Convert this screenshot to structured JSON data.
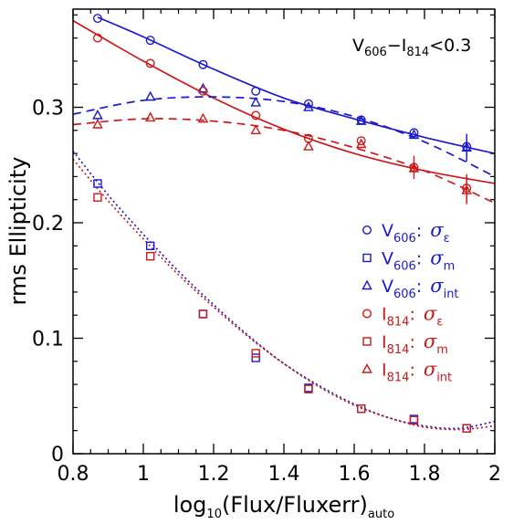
{
  "chart_data": {
    "type": "scatter",
    "xlabel": "log10(Flux/Fluxerr)auto",
    "xlabel_parts": {
      "pre": "log",
      "pre_sub": "10",
      "mid": "(Flux/Fluxerr)",
      "post_sub": "auto"
    },
    "ylabel": "rms Ellipticity",
    "xlim": [
      0.8,
      2.0
    ],
    "ylim": [
      0.0,
      0.385
    ],
    "xticks": [
      0.8,
      1.0,
      1.2,
      1.4,
      1.6,
      1.8,
      2.0
    ],
    "xtick_labels": [
      "0.8",
      "1",
      "1.2",
      "1.4",
      "1.6",
      "1.8",
      "2"
    ],
    "yticks": [
      0.0,
      0.1,
      0.2,
      0.3
    ],
    "ytick_labels": [
      "0",
      "0.1",
      "0.2",
      "0.3"
    ],
    "annotation": {
      "text": "V606−I814<0.3",
      "parts": {
        "a": "V",
        "a_sub": "606",
        "mid": "−I",
        "b_sub": "814",
        "rest": "<0.3"
      }
    },
    "legend_position": "right-middle",
    "colors": {
      "blue": "#1a1acc",
      "red": "#cc1a1a"
    },
    "series": [
      {
        "name": "V606: σε",
        "label_band": "V",
        "label_band_sub": "606",
        "label_sym": "σ",
        "label_sym_sub": "ε",
        "marker": "circle",
        "color": "#1a1acc",
        "x": [
          0.87,
          1.02,
          1.17,
          1.32,
          1.47,
          1.62,
          1.77,
          1.92
        ],
        "y": [
          0.377,
          0.358,
          0.337,
          0.314,
          0.303,
          0.289,
          0.278,
          0.266
        ]
      },
      {
        "name": "V606: σm",
        "label_band": "V",
        "label_band_sub": "606",
        "label_sym": "σ",
        "label_sym_sub": "m",
        "marker": "square",
        "color": "#1a1acc",
        "x": [
          0.87,
          1.02,
          1.17,
          1.32,
          1.47,
          1.62,
          1.77,
          1.92
        ],
        "y": [
          0.234,
          0.18,
          0.121,
          0.083,
          0.057,
          0.039,
          0.03,
          0.022
        ]
      },
      {
        "name": "V606: σint",
        "label_band": "V",
        "label_band_sub": "606",
        "label_sym": "σ",
        "label_sym_sub": "int",
        "marker": "triangle",
        "color": "#1a1acc",
        "x": [
          0.87,
          1.02,
          1.17,
          1.32,
          1.47,
          1.62,
          1.77,
          1.92
        ],
        "y": [
          0.293,
          0.309,
          0.316,
          0.304,
          0.3,
          0.288,
          0.276,
          0.265
        ]
      },
      {
        "name": "I814: σε",
        "label_band": "I",
        "label_band_sub": "814",
        "label_sym": "σ",
        "label_sym_sub": "ε",
        "marker": "circle",
        "color": "#cc1a1a",
        "x": [
          0.87,
          1.02,
          1.17,
          1.32,
          1.47,
          1.62,
          1.77,
          1.92
        ],
        "y": [
          0.36,
          0.338,
          0.314,
          0.293,
          0.273,
          0.271,
          0.248,
          0.23
        ]
      },
      {
        "name": "I814: σm",
        "label_band": "I",
        "label_band_sub": "814",
        "label_sym": "σ",
        "label_sym_sub": "m",
        "marker": "square",
        "color": "#cc1a1a",
        "x": [
          0.87,
          1.02,
          1.17,
          1.32,
          1.47,
          1.62,
          1.77,
          1.92
        ],
        "y": [
          0.222,
          0.171,
          0.121,
          0.087,
          0.056,
          0.039,
          0.029,
          0.022
        ]
      },
      {
        "name": "I814: σint",
        "label_band": "I",
        "label_band_sub": "814",
        "label_sym": "σ",
        "label_sym_sub": "int",
        "marker": "triangle",
        "color": "#cc1a1a",
        "x": [
          0.87,
          1.02,
          1.17,
          1.32,
          1.47,
          1.62,
          1.77,
          1.92
        ],
        "y": [
          0.285,
          0.291,
          0.29,
          0.28,
          0.266,
          0.268,
          0.247,
          0.228
        ]
      }
    ],
    "fit_curves": [
      {
        "of": "V606: σε",
        "style": "solid",
        "color": "#1a1acc",
        "x": [
          0.87,
          1.0,
          1.2,
          1.4,
          1.6,
          1.8,
          2.0
        ],
        "y": [
          0.378,
          0.361,
          0.333,
          0.308,
          0.29,
          0.274,
          0.26
        ]
      },
      {
        "of": "I814: σε",
        "style": "solid",
        "color": "#cc1a1a",
        "x": [
          0.8,
          1.0,
          1.2,
          1.4,
          1.6,
          1.8,
          2.0
        ],
        "y": [
          0.375,
          0.34,
          0.308,
          0.281,
          0.26,
          0.245,
          0.234
        ]
      },
      {
        "of": "V606: σint",
        "style": "dashed",
        "color": "#1a1acc",
        "x": [
          0.8,
          1.0,
          1.2,
          1.4,
          1.6,
          1.8,
          2.0
        ],
        "y": [
          0.294,
          0.306,
          0.309,
          0.305,
          0.292,
          0.27,
          0.24
        ]
      },
      {
        "of": "I814: σint",
        "style": "dashed",
        "color": "#cc1a1a",
        "x": [
          0.8,
          1.0,
          1.2,
          1.4,
          1.6,
          1.8,
          2.0
        ],
        "y": [
          0.285,
          0.29,
          0.288,
          0.28,
          0.265,
          0.245,
          0.217
        ]
      },
      {
        "of": "V606: σm",
        "style": "dotted",
        "color": "#1a1acc",
        "x": [
          0.8,
          0.9,
          1.0,
          1.1,
          1.2,
          1.3,
          1.4,
          1.5,
          1.6,
          1.7,
          1.8,
          1.9,
          2.0
        ],
        "y": [
          0.262,
          0.224,
          0.19,
          0.158,
          0.129,
          0.102,
          0.078,
          0.059,
          0.043,
          0.031,
          0.024,
          0.022,
          0.028
        ]
      },
      {
        "of": "I814: σm",
        "style": "dotted",
        "color": "#cc1a1a",
        "x": [
          0.8,
          0.9,
          1.0,
          1.1,
          1.2,
          1.3,
          1.4,
          1.5,
          1.6,
          1.7,
          1.8,
          1.9,
          2.0
        ],
        "y": [
          0.255,
          0.219,
          0.186,
          0.155,
          0.127,
          0.101,
          0.078,
          0.058,
          0.042,
          0.031,
          0.023,
          0.021,
          0.024
        ]
      }
    ],
    "error_bars": [
      {
        "of": "V606: σε",
        "x": 1.92,
        "y": 0.266,
        "err": 0.01
      },
      {
        "of": "V606: σint",
        "x": 1.92,
        "y": 0.265,
        "err": 0.012
      },
      {
        "of": "I814: σε",
        "x": 1.77,
        "y": 0.248,
        "err": 0.01
      },
      {
        "of": "I814: σε",
        "x": 1.92,
        "y": 0.23,
        "err": 0.012
      },
      {
        "of": "I814: σint",
        "x": 1.92,
        "y": 0.228,
        "err": 0.012
      }
    ],
    "grid": false
  }
}
